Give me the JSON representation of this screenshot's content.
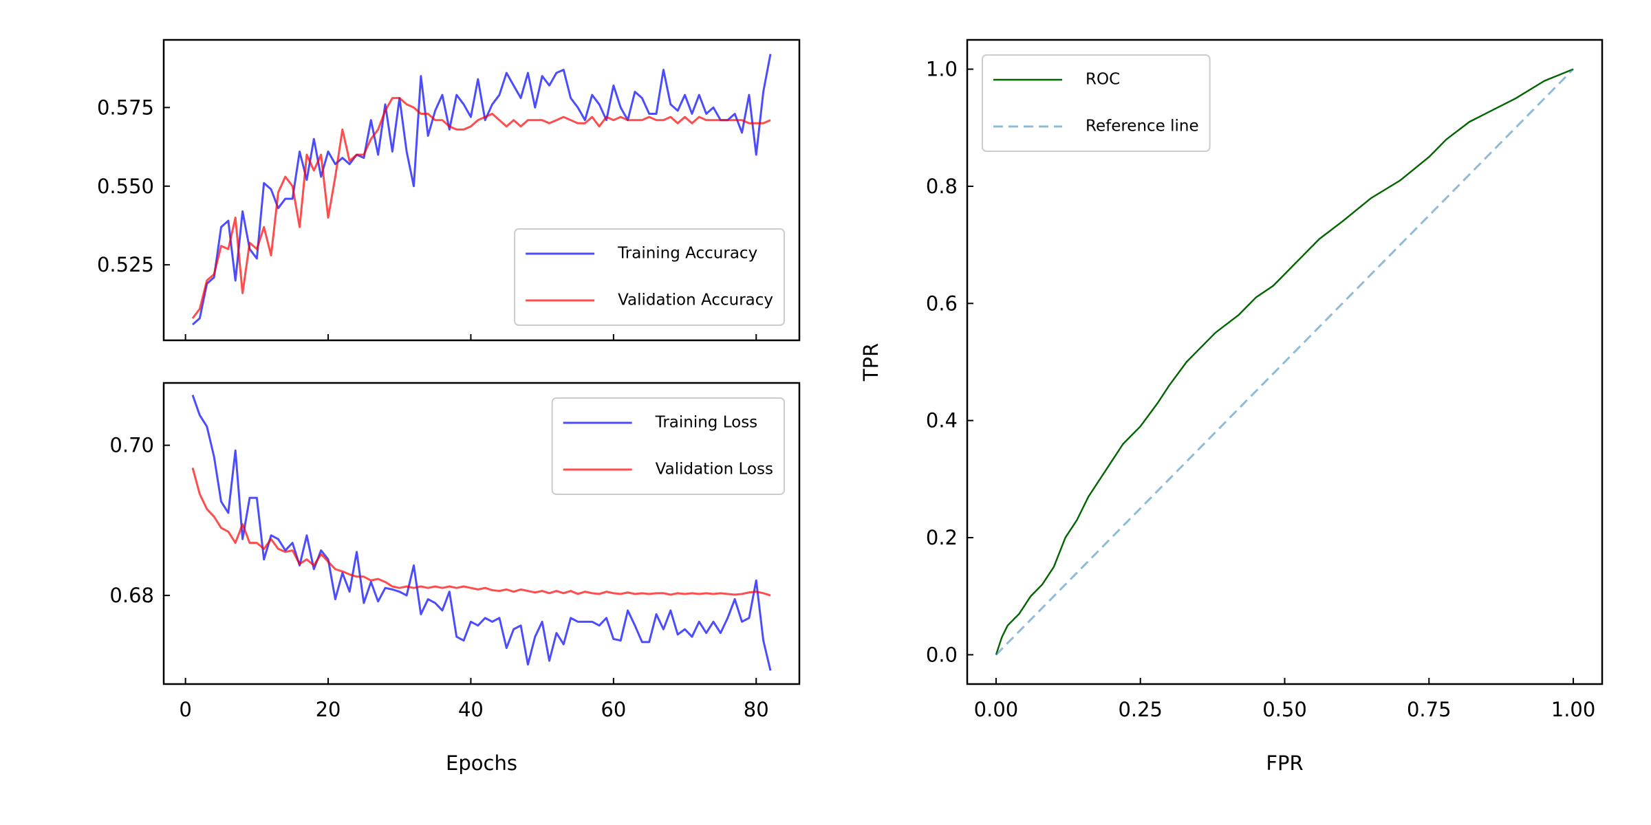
{
  "chart_data": [
    {
      "type": "line",
      "x": [
        1,
        2,
        3,
        4,
        5,
        6,
        7,
        8,
        9,
        10,
        11,
        12,
        13,
        14,
        15,
        16,
        17,
        18,
        19,
        20,
        21,
        22,
        23,
        24,
        25,
        26,
        27,
        28,
        29,
        30,
        31,
        32,
        33,
        34,
        35,
        36,
        37,
        38,
        39,
        40,
        41,
        42,
        43,
        44,
        45,
        46,
        47,
        48,
        49,
        50,
        51,
        52,
        53,
        54,
        55,
        56,
        57,
        58,
        59,
        60,
        61,
        62,
        63,
        64,
        65,
        66,
        67,
        68,
        69,
        70,
        71,
        72,
        73,
        74,
        75,
        76,
        77,
        78,
        79,
        80,
        81,
        82
      ],
      "series": [
        {
          "name": "Training Accuracy",
          "color": "#0000ff",
          "alpha": 0.7,
          "values": [
            0.506,
            0.508,
            0.519,
            0.521,
            0.537,
            0.539,
            0.52,
            0.542,
            0.53,
            0.527,
            0.551,
            0.549,
            0.543,
            0.546,
            0.546,
            0.561,
            0.552,
            0.565,
            0.553,
            0.561,
            0.557,
            0.559,
            0.557,
            0.56,
            0.559,
            0.571,
            0.56,
            0.576,
            0.561,
            0.578,
            0.561,
            0.55,
            0.585,
            0.566,
            0.574,
            0.579,
            0.568,
            0.579,
            0.576,
            0.572,
            0.584,
            0.571,
            0.576,
            0.579,
            0.586,
            0.582,
            0.578,
            0.586,
            0.575,
            0.585,
            0.582,
            0.586,
            0.587,
            0.578,
            0.575,
            0.571,
            0.579,
            0.576,
            0.571,
            0.582,
            0.575,
            0.571,
            0.58,
            0.578,
            0.573,
            0.573,
            0.587,
            0.576,
            0.574,
            0.579,
            0.573,
            0.579,
            0.573,
            0.575,
            0.571,
            0.571,
            0.573,
            0.567,
            0.579,
            0.56,
            0.58,
            0.592
          ]
        },
        {
          "name": "Validation Accuracy",
          "color": "#ff0000",
          "alpha": 0.7,
          "values": [
            0.508,
            0.511,
            0.52,
            0.522,
            0.531,
            0.53,
            0.54,
            0.516,
            0.532,
            0.53,
            0.537,
            0.528,
            0.548,
            0.553,
            0.55,
            0.537,
            0.56,
            0.555,
            0.56,
            0.54,
            0.553,
            0.568,
            0.558,
            0.56,
            0.56,
            0.565,
            0.568,
            0.574,
            0.578,
            0.578,
            0.576,
            0.575,
            0.573,
            0.573,
            0.571,
            0.571,
            0.569,
            0.568,
            0.568,
            0.569,
            0.571,
            0.572,
            0.573,
            0.571,
            0.569,
            0.571,
            0.569,
            0.571,
            0.571,
            0.571,
            0.57,
            0.571,
            0.572,
            0.571,
            0.57,
            0.57,
            0.572,
            0.569,
            0.572,
            0.571,
            0.572,
            0.571,
            0.571,
            0.571,
            0.572,
            0.571,
            0.571,
            0.572,
            0.57,
            0.572,
            0.57,
            0.572,
            0.571,
            0.571,
            0.571,
            0.571,
            0.571,
            0.571,
            0.57,
            0.57,
            0.57,
            0.571
          ]
        }
      ],
      "xlim": [
        -3.05,
        86.05
      ],
      "xticks": [
        0,
        20,
        40,
        60,
        80
      ],
      "ylim": [
        0.501,
        0.5965
      ],
      "yticks": [
        0.525,
        {
          "value": 0.55,
          "label": "0.550"
        },
        0.575
      ],
      "legend": "lower right"
    },
    {
      "type": "line",
      "xlabel": "Epochs",
      "x": [
        1,
        2,
        3,
        4,
        5,
        6,
        7,
        8,
        9,
        10,
        11,
        12,
        13,
        14,
        15,
        16,
        17,
        18,
        19,
        20,
        21,
        22,
        23,
        24,
        25,
        26,
        27,
        28,
        29,
        30,
        31,
        32,
        33,
        34,
        35,
        36,
        37,
        38,
        39,
        40,
        41,
        42,
        43,
        44,
        45,
        46,
        47,
        48,
        49,
        50,
        51,
        52,
        53,
        54,
        55,
        56,
        57,
        58,
        59,
        60,
        61,
        62,
        63,
        64,
        65,
        66,
        67,
        68,
        69,
        70,
        71,
        72,
        73,
        74,
        75,
        76,
        77,
        78,
        79,
        80,
        81,
        82
      ],
      "series": [
        {
          "name": "Training Loss",
          "color": "#0000ff",
          "alpha": 0.7,
          "values": [
            0.7067,
            0.704,
            0.7025,
            0.6985,
            0.6925,
            0.691,
            0.6993,
            0.6875,
            0.693,
            0.693,
            0.6848,
            0.688,
            0.6875,
            0.686,
            0.687,
            0.684,
            0.688,
            0.6835,
            0.686,
            0.6848,
            0.6795,
            0.683,
            0.6805,
            0.6858,
            0.679,
            0.6818,
            0.6792,
            0.681,
            0.6808,
            0.6805,
            0.68,
            0.684,
            0.6775,
            0.6795,
            0.679,
            0.678,
            0.6805,
            0.6745,
            0.674,
            0.6765,
            0.676,
            0.677,
            0.6765,
            0.677,
            0.673,
            0.6755,
            0.676,
            0.6708,
            0.6745,
            0.6765,
            0.6713,
            0.675,
            0.6735,
            0.677,
            0.6765,
            0.6765,
            0.6765,
            0.676,
            0.677,
            0.6742,
            0.674,
            0.678,
            0.676,
            0.6738,
            0.6738,
            0.6775,
            0.6755,
            0.678,
            0.6748,
            0.6755,
            0.6745,
            0.6765,
            0.675,
            0.6765,
            0.675,
            0.677,
            0.6795,
            0.6765,
            0.677,
            0.682,
            0.674,
            0.67
          ]
        },
        {
          "name": "Validation Loss",
          "color": "#ff0000",
          "alpha": 0.7,
          "values": [
            0.697,
            0.6935,
            0.6915,
            0.6905,
            0.689,
            0.6885,
            0.687,
            0.6895,
            0.687,
            0.687,
            0.6862,
            0.6875,
            0.6862,
            0.6858,
            0.686,
            0.6842,
            0.6848,
            0.684,
            0.6855,
            0.6845,
            0.6835,
            0.6832,
            0.6828,
            0.6825,
            0.6825,
            0.682,
            0.6822,
            0.6818,
            0.6812,
            0.681,
            0.6812,
            0.681,
            0.6812,
            0.681,
            0.6812,
            0.681,
            0.6812,
            0.681,
            0.6812,
            0.681,
            0.6808,
            0.681,
            0.6807,
            0.6806,
            0.6808,
            0.6805,
            0.6808,
            0.6806,
            0.6804,
            0.6806,
            0.6803,
            0.6806,
            0.6803,
            0.6806,
            0.6802,
            0.6805,
            0.6803,
            0.6802,
            0.6805,
            0.6803,
            0.6802,
            0.6804,
            0.6802,
            0.6803,
            0.6802,
            0.6803,
            0.6803,
            0.6801,
            0.6803,
            0.6802,
            0.6803,
            0.6802,
            0.6803,
            0.6802,
            0.6803,
            0.6802,
            0.6801,
            0.6802,
            0.6804,
            0.6805,
            0.6803,
            0.68
          ]
        }
      ],
      "xlim": [
        -3.05,
        86.05
      ],
      "xticks": [
        0,
        20,
        40,
        60,
        80
      ],
      "ylim": [
        0.6682,
        0.7083
      ],
      "yticks": [
        0.68,
        {
          "value": 0.7,
          "label": "0.70"
        }
      ],
      "legend": "upper right"
    },
    {
      "type": "line",
      "xlabel": "FPR",
      "ylabel": "TPR",
      "series": [
        {
          "name": "ROC",
          "color": "#006400",
          "alpha": 1,
          "width": 2.4,
          "x": [
            0,
            0.01,
            0.02,
            0.04,
            0.06,
            0.08,
            0.1,
            0.12,
            0.14,
            0.16,
            0.18,
            0.2,
            0.22,
            0.25,
            0.28,
            0.3,
            0.33,
            0.35,
            0.38,
            0.42,
            0.45,
            0.48,
            0.5,
            0.53,
            0.56,
            0.6,
            0.65,
            0.7,
            0.75,
            0.78,
            0.82,
            0.86,
            0.9,
            0.95,
            1
          ],
          "values": [
            0,
            0.03,
            0.05,
            0.07,
            0.1,
            0.12,
            0.15,
            0.2,
            0.23,
            0.27,
            0.3,
            0.33,
            0.36,
            0.39,
            0.43,
            0.46,
            0.5,
            0.52,
            0.55,
            0.58,
            0.61,
            0.63,
            0.65,
            0.68,
            0.71,
            0.74,
            0.78,
            0.81,
            0.85,
            0.88,
            0.91,
            0.93,
            0.95,
            0.98,
            1
          ]
        },
        {
          "name": "Reference line",
          "color": "#1f77b4",
          "alpha": 0.5,
          "dash": true,
          "x": [
            0,
            1
          ],
          "values": [
            0,
            1
          ]
        }
      ],
      "xlim": [
        -0.05,
        1.05
      ],
      "xticks": [
        {
          "value": 0,
          "label": "0.00"
        },
        0.25,
        {
          "value": 0.5,
          "label": "0.50"
        },
        0.75,
        {
          "value": 1,
          "label": "1.00"
        }
      ],
      "ylim": [
        -0.05,
        1.05
      ],
      "yticks": [
        {
          "value": 0,
          "label": "0.0"
        },
        0.2,
        0.4,
        0.6,
        0.8,
        {
          "value": 1,
          "label": "1.0"
        }
      ],
      "legend": "upper left"
    }
  ]
}
